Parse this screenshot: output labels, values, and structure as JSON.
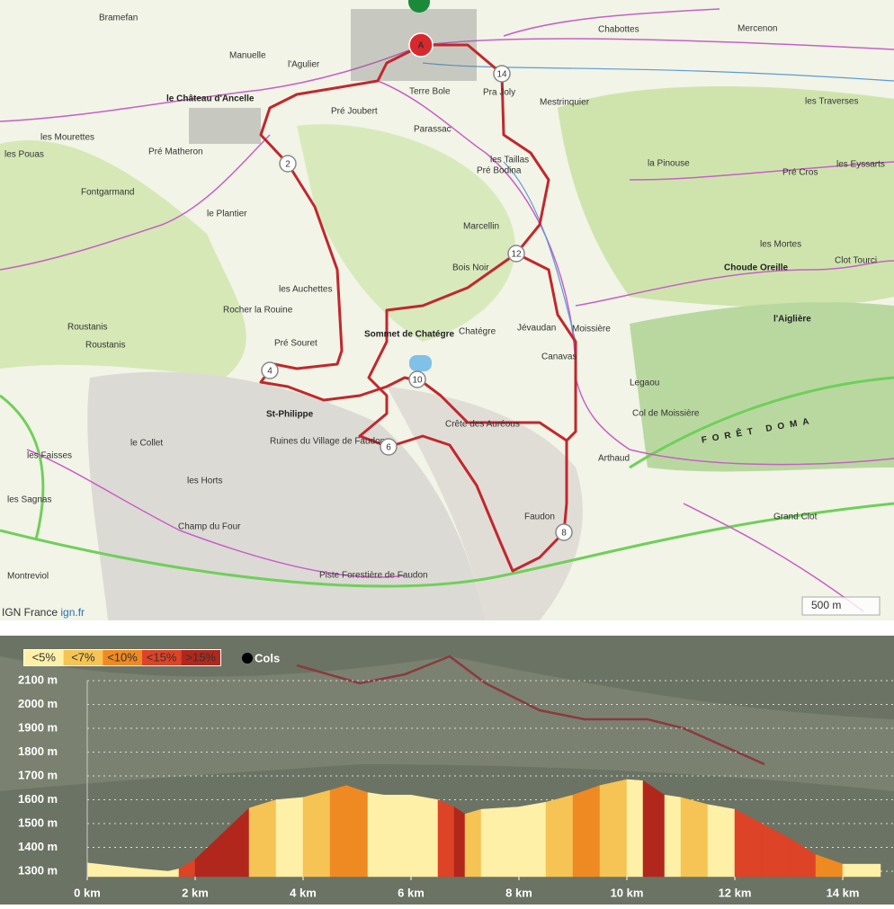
{
  "map": {
    "labels": [
      "Bramefan",
      "Manuelle",
      "l'Agulier",
      "le Château d'Ancelle",
      "Chabottes",
      "Mercenon",
      "Mestrinquier",
      "Pra Joly",
      "Terre Bole",
      "Parassac",
      "Pré Joubert",
      "les Mourettes",
      "Pré Matheron",
      "les Pouas",
      "Fontgarmand",
      "le Plantier",
      "les Taillas",
      "Pré Bodina",
      "la Pinouse",
      "les Traverses",
      "Pré Cros",
      "les Eyssarts",
      "Marcellin",
      "Bois Noir",
      "les Mortes",
      "Choude Oreille",
      "Clot Tourci",
      "les Auchettes",
      "Rocher la Rouine",
      "Roustanis",
      "Pré Souret",
      "Sommet de Chatégre",
      "Chatégre",
      "Jévaudan",
      "Canavas",
      "Moissière",
      "l'Aiglière",
      "St-Philippe",
      "Ruines du Village de Faudon",
      "Crête des Auréous",
      "Col de Moissière",
      "Legaou",
      "FORÊT DOMA",
      "le Collet",
      "les Faisses",
      "les Horts",
      "Champ du Four",
      "les Sagnas",
      "Faudon",
      "Arthaud",
      "Grand Clot",
      "Montreviol",
      "Piste Forestière de Faudon",
      "Roustanis"
    ],
    "markers": [
      "A",
      "14",
      "2",
      "12",
      "4",
      "10",
      "6",
      "8"
    ],
    "scale": "500 m",
    "attribution": "IGN France",
    "attribution_link": "ign.fr"
  },
  "profile": {
    "legend": [
      {
        "label": "<5%",
        "color": "#fff0a8"
      },
      {
        "label": "<7%",
        "color": "#f5c455"
      },
      {
        "label": "<10%",
        "color": "#ef8a22"
      },
      {
        "label": "<15%",
        "color": "#dd4326"
      },
      {
        "label": ">15%",
        "color": "#b1271c"
      }
    ],
    "cols_label": "Cols",
    "x": [
      0,
      1,
      1.5,
      1.7,
      2,
      3,
      3.5,
      4,
      4.5,
      4.8,
      5.2,
      5.5,
      6,
      6.5,
      6.8,
      7,
      7.3,
      8,
      8.5,
      9,
      9.5,
      10,
      10.3,
      10.7,
      11,
      11.5,
      12,
      12.5,
      13,
      13.5,
      14,
      14.7
    ],
    "values": [
      1335,
      1310,
      1300,
      1310,
      1350,
      1565,
      1600,
      1610,
      1640,
      1660,
      1630,
      1620,
      1620,
      1600,
      1570,
      1540,
      1560,
      1570,
      1590,
      1620,
      1660,
      1685,
      1680,
      1620,
      1610,
      1580,
      1560,
      1500,
      1440,
      1370,
      1330,
      1330
    ],
    "segment_colors": [
      "#fff0a8",
      "#fff0a8",
      "#fff0a8",
      "#dd4326",
      "#b1271c",
      "#f5c455",
      "#fff0a8",
      "#f5c455",
      "#ef8a22",
      "#ef8a22",
      "#fff0a8",
      "#fff0a8",
      "#fff0a8",
      "#dd4326",
      "#b1271c",
      "#f5c455",
      "#fff0a8",
      "#fff0a8",
      "#f5c455",
      "#ef8a22",
      "#f5c455",
      "#fff0a8",
      "#b1271c",
      "#fff0a8",
      "#f5c455",
      "#fff0a8",
      "#dd4326",
      "#dd4326",
      "#dd4326",
      "#ef8a22",
      "#fff0a8"
    ],
    "xlim": [
      0,
      14.8
    ],
    "ylim": [
      1300,
      2100
    ],
    "xticks": [
      {
        "value": 0,
        "label": "0 km"
      },
      {
        "value": 2,
        "label": "2 km"
      },
      {
        "value": 4,
        "label": "4 km"
      },
      {
        "value": 6,
        "label": "6 km"
      },
      {
        "value": 8,
        "label": "8 km"
      },
      {
        "value": 10,
        "label": "10 km"
      },
      {
        "value": 12,
        "label": "12 km"
      },
      {
        "value": 14,
        "label": "14 km"
      }
    ],
    "yticks": [
      {
        "value": 1300,
        "label": "1300 m"
      },
      {
        "value": 1400,
        "label": "1400 m"
      },
      {
        "value": 1500,
        "label": "1500 m"
      },
      {
        "value": 1600,
        "label": "1600 m"
      },
      {
        "value": 1700,
        "label": "1700 m"
      },
      {
        "value": 1800,
        "label": "1800 m"
      },
      {
        "value": 1900,
        "label": "1900 m"
      },
      {
        "value": 2000,
        "label": "2000 m"
      },
      {
        "value": 2100,
        "label": "2100 m"
      }
    ],
    "grid": true
  }
}
